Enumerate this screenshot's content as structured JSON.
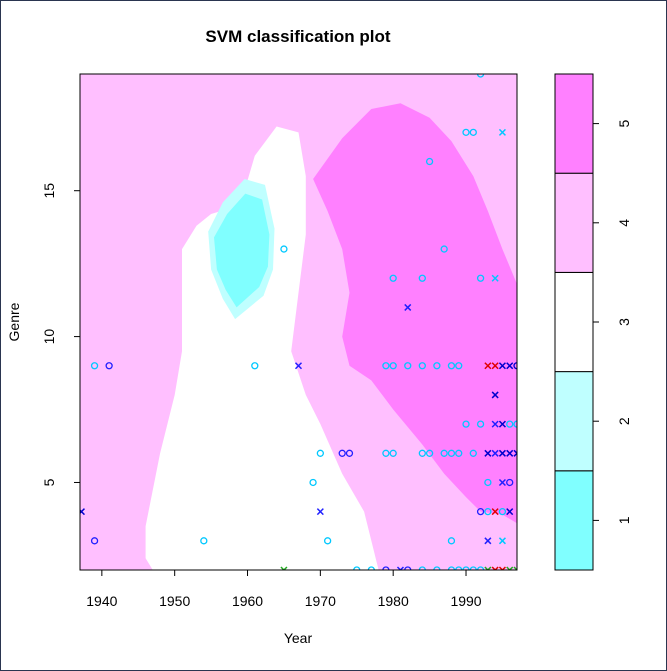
{
  "chart_data": {
    "type": "heatmap",
    "title": "SVM classification plot",
    "xlabel": "Year",
    "ylabel": "Genre",
    "xlim": [
      1937,
      1997
    ],
    "ylim": [
      2,
      19
    ],
    "x_ticks": [
      "1940",
      "1950",
      "1960",
      "1970",
      "1980",
      "1990"
    ],
    "y_ticks": [
      "5",
      "10",
      "15"
    ],
    "legend": {
      "placement": "right",
      "levels": [
        "1",
        "2",
        "3",
        "4",
        "5"
      ],
      "colors": [
        "#80ffff",
        "#bfffff",
        "#ffffff",
        "#ffbfff",
        "#ff80ff"
      ]
    },
    "regions": [
      {
        "class": "5",
        "polygon": [
          [
            1969,
            15.4
          ],
          [
            1973,
            16.8
          ],
          [
            1977,
            17.8
          ],
          [
            1981,
            18.0
          ],
          [
            1985,
            17.5
          ],
          [
            1988,
            16.7
          ],
          [
            1991,
            15.5
          ],
          [
            1993,
            14.3
          ],
          [
            1995,
            13.0
          ],
          [
            1997,
            11.8
          ],
          [
            1997,
            3.6
          ],
          [
            1995,
            3.9
          ],
          [
            1992,
            4.0
          ],
          [
            1990,
            4.5
          ],
          [
            1987,
            5.3
          ],
          [
            1984,
            6.3
          ],
          [
            1980,
            7.5
          ],
          [
            1977,
            8.5
          ],
          [
            1974,
            9.0
          ],
          [
            1973,
            10.0
          ],
          [
            1974,
            11.5
          ],
          [
            1973,
            13.0
          ],
          [
            1971,
            14.3
          ]
        ]
      },
      {
        "class": "3",
        "polygon": [
          [
            1959,
            14.5
          ],
          [
            1961,
            16.2
          ],
          [
            1964,
            17.2
          ],
          [
            1967,
            17.0
          ],
          [
            1968,
            15.5
          ],
          [
            1968,
            13.5
          ],
          [
            1967,
            11.5
          ],
          [
            1966,
            9.5
          ],
          [
            1968,
            8.0
          ],
          [
            1970,
            7.0
          ],
          [
            1973,
            5.3
          ],
          [
            1976,
            4.0
          ],
          [
            1978,
            2.0
          ],
          [
            1947,
            2.0
          ],
          [
            1946,
            2.4
          ],
          [
            1946,
            3.5
          ],
          [
            1948,
            6.0
          ],
          [
            1950,
            8.0
          ],
          [
            1951,
            9.5
          ],
          [
            1951,
            11.0
          ],
          [
            1951,
            13.0
          ],
          [
            1953,
            13.8
          ],
          [
            1955,
            14.2
          ]
        ]
      },
      {
        "class": "2",
        "polygon": [
          [
            1955,
            12.3
          ],
          [
            1954.6,
            13.6
          ],
          [
            1956.6,
            14.6
          ],
          [
            1959.6,
            15.4
          ],
          [
            1962.4,
            15.2
          ],
          [
            1963.7,
            13.7
          ],
          [
            1963.5,
            12.3
          ],
          [
            1962.2,
            11.4
          ],
          [
            1958.3,
            10.6
          ],
          [
            1956.6,
            11.3
          ]
        ]
      },
      {
        "class": "1",
        "polygon": [
          [
            1955.8,
            12.3
          ],
          [
            1955.4,
            13.4
          ],
          [
            1957.2,
            14.2
          ],
          [
            1959.7,
            14.9
          ],
          [
            1962.0,
            14.7
          ],
          [
            1963.0,
            13.5
          ],
          [
            1962.8,
            12.4
          ],
          [
            1961.6,
            11.7
          ],
          [
            1958.5,
            11.0
          ],
          [
            1957.0,
            11.6
          ]
        ]
      }
    ],
    "points": [
      {
        "x": 1937.2,
        "y": 4,
        "s": "x",
        "c": "#0000cd"
      },
      {
        "x": 1939,
        "y": 9,
        "s": "o",
        "c": "#00c8ff"
      },
      {
        "x": 1941,
        "y": 9,
        "s": "o",
        "c": "#2020ff"
      },
      {
        "x": 1939,
        "y": 3,
        "s": "o",
        "c": "#2020ff"
      },
      {
        "x": 1954,
        "y": 3,
        "s": "o",
        "c": "#00c8ff"
      },
      {
        "x": 1961,
        "y": 9,
        "s": "o",
        "c": "#00c8ff"
      },
      {
        "x": 1965,
        "y": 13,
        "s": "o",
        "c": "#00c8ff"
      },
      {
        "x": 1967,
        "y": 9,
        "s": "x",
        "c": "#2020ff"
      },
      {
        "x": 1965,
        "y": 2,
        "s": "x",
        "c": "#22aa22"
      },
      {
        "x": 1969,
        "y": 5,
        "s": "o",
        "c": "#00c8ff"
      },
      {
        "x": 1970,
        "y": 6,
        "s": "o",
        "c": "#00c8ff"
      },
      {
        "x": 1970,
        "y": 4,
        "s": "x",
        "c": "#2020ff"
      },
      {
        "x": 1971,
        "y": 3,
        "s": "o",
        "c": "#00c8ff"
      },
      {
        "x": 1973,
        "y": 6,
        "s": "o",
        "c": "#2020ff"
      },
      {
        "x": 1974,
        "y": 6,
        "s": "o",
        "c": "#2020ff"
      },
      {
        "x": 1975,
        "y": 2,
        "s": "o",
        "c": "#00c8ff"
      },
      {
        "x": 1977,
        "y": 2,
        "s": "o",
        "c": "#00c8ff"
      },
      {
        "x": 1979,
        "y": 2,
        "s": "o",
        "c": "#2020ff"
      },
      {
        "x": 1981,
        "y": 2,
        "s": "x",
        "c": "#2020ff"
      },
      {
        "x": 1982,
        "y": 2,
        "s": "o",
        "c": "#2020ff"
      },
      {
        "x": 1984,
        "y": 2,
        "s": "o",
        "c": "#00c8ff"
      },
      {
        "x": 1979,
        "y": 6,
        "s": "o",
        "c": "#00c8ff"
      },
      {
        "x": 1980,
        "y": 6,
        "s": "o",
        "c": "#00c8ff"
      },
      {
        "x": 1979,
        "y": 9,
        "s": "o",
        "c": "#00c8ff"
      },
      {
        "x": 1980,
        "y": 9,
        "s": "o",
        "c": "#00c8ff"
      },
      {
        "x": 1982,
        "y": 9,
        "s": "o",
        "c": "#00c8ff"
      },
      {
        "x": 1984,
        "y": 9,
        "s": "o",
        "c": "#00c8ff"
      },
      {
        "x": 1986,
        "y": 9,
        "s": "o",
        "c": "#00c8ff"
      },
      {
        "x": 1988,
        "y": 9,
        "s": "o",
        "c": "#00c8ff"
      },
      {
        "x": 1989,
        "y": 9,
        "s": "o",
        "c": "#00c8ff"
      },
      {
        "x": 1980,
        "y": 12,
        "s": "o",
        "c": "#00c8ff"
      },
      {
        "x": 1982,
        "y": 11,
        "s": "x",
        "c": "#2020ff"
      },
      {
        "x": 1984,
        "y": 12,
        "s": "o",
        "c": "#00c8ff"
      },
      {
        "x": 1987,
        "y": 13,
        "s": "o",
        "c": "#00c8ff"
      },
      {
        "x": 1985,
        "y": 16,
        "s": "o",
        "c": "#00c8ff"
      },
      {
        "x": 1990,
        "y": 17,
        "s": "o",
        "c": "#00c8ff"
      },
      {
        "x": 1991,
        "y": 17,
        "s": "o",
        "c": "#00c8ff"
      },
      {
        "x": 1995,
        "y": 17,
        "s": "x",
        "c": "#00c8ff"
      },
      {
        "x": 1992,
        "y": 19,
        "s": "o",
        "c": "#00c8ff"
      },
      {
        "x": 1992,
        "y": 12,
        "s": "o",
        "c": "#00c8ff"
      },
      {
        "x": 1994,
        "y": 12,
        "s": "x",
        "c": "#00c8ff"
      },
      {
        "x": 1984,
        "y": 6,
        "s": "o",
        "c": "#00c8ff"
      },
      {
        "x": 1985,
        "y": 6,
        "s": "o",
        "c": "#00c8ff"
      },
      {
        "x": 1987,
        "y": 6,
        "s": "o",
        "c": "#00c8ff"
      },
      {
        "x": 1988,
        "y": 6,
        "s": "o",
        "c": "#00c8ff"
      },
      {
        "x": 1989,
        "y": 6,
        "s": "o",
        "c": "#00c8ff"
      },
      {
        "x": 1991,
        "y": 6,
        "s": "o",
        "c": "#00c8ff"
      },
      {
        "x": 1990,
        "y": 7,
        "s": "o",
        "c": "#00c8ff"
      },
      {
        "x": 1992,
        "y": 7,
        "s": "o",
        "c": "#00c8ff"
      },
      {
        "x": 1988,
        "y": 3,
        "s": "o",
        "c": "#00c8ff"
      },
      {
        "x": 1986,
        "y": 2,
        "s": "o",
        "c": "#00c8ff"
      },
      {
        "x": 1988,
        "y": 2,
        "s": "o",
        "c": "#00c8ff"
      },
      {
        "x": 1989,
        "y": 2,
        "s": "o",
        "c": "#00c8ff"
      },
      {
        "x": 1990,
        "y": 2,
        "s": "o",
        "c": "#00c8ff"
      },
      {
        "x": 1991,
        "y": 2,
        "s": "o",
        "c": "#00c8ff"
      },
      {
        "x": 1992,
        "y": 2,
        "s": "o",
        "c": "#00c8ff"
      },
      {
        "x": 1993,
        "y": 2,
        "s": "x",
        "c": "#22aa22"
      },
      {
        "x": 1994,
        "y": 2,
        "s": "x",
        "c": "#e00000"
      },
      {
        "x": 1995,
        "y": 2,
        "s": "x",
        "c": "#e00000"
      },
      {
        "x": 1996,
        "y": 2,
        "s": "x",
        "c": "#22aa22"
      },
      {
        "x": 1997,
        "y": 2,
        "s": "x",
        "c": "#22aa22"
      },
      {
        "x": 1993,
        "y": 9,
        "s": "x",
        "c": "#e00000"
      },
      {
        "x": 1994,
        "y": 9,
        "s": "x",
        "c": "#e00000"
      },
      {
        "x": 1995,
        "y": 9,
        "s": "x",
        "c": "#0000cd"
      },
      {
        "x": 1996,
        "y": 9,
        "s": "x",
        "c": "#0000cd"
      },
      {
        "x": 1997,
        "y": 9,
        "s": "o",
        "c": "#0000cd"
      },
      {
        "x": 1994,
        "y": 8,
        "s": "x",
        "c": "#0000cd"
      },
      {
        "x": 1994,
        "y": 7,
        "s": "x",
        "c": "#2020ff"
      },
      {
        "x": 1995,
        "y": 7,
        "s": "x",
        "c": "#0000cd"
      },
      {
        "x": 1996,
        "y": 7,
        "s": "o",
        "c": "#00c8ff"
      },
      {
        "x": 1997,
        "y": 7,
        "s": "o",
        "c": "#00c8ff"
      },
      {
        "x": 1993,
        "y": 6,
        "s": "x",
        "c": "#0000cd"
      },
      {
        "x": 1994,
        "y": 6,
        "s": "x",
        "c": "#2020ff"
      },
      {
        "x": 1995,
        "y": 6,
        "s": "x",
        "c": "#0000cd"
      },
      {
        "x": 1996,
        "y": 6,
        "s": "x",
        "c": "#0000cd"
      },
      {
        "x": 1997,
        "y": 6,
        "s": "x",
        "c": "#0000cd"
      },
      {
        "x": 1993,
        "y": 5,
        "s": "o",
        "c": "#00c8ff"
      },
      {
        "x": 1995,
        "y": 5,
        "s": "x",
        "c": "#2020ff"
      },
      {
        "x": 1996,
        "y": 5,
        "s": "o",
        "c": "#2020ff"
      },
      {
        "x": 1992,
        "y": 4,
        "s": "o",
        "c": "#2020ff"
      },
      {
        "x": 1993,
        "y": 4,
        "s": "o",
        "c": "#00c8ff"
      },
      {
        "x": 1994,
        "y": 4,
        "s": "x",
        "c": "#e00000"
      },
      {
        "x": 1995,
        "y": 4,
        "s": "o",
        "c": "#00c8ff"
      },
      {
        "x": 1996,
        "y": 4,
        "s": "x",
        "c": "#0000cd"
      },
      {
        "x": 1993,
        "y": 3,
        "s": "x",
        "c": "#2020ff"
      },
      {
        "x": 1995,
        "y": 3,
        "s": "x",
        "c": "#00c8ff"
      }
    ]
  }
}
